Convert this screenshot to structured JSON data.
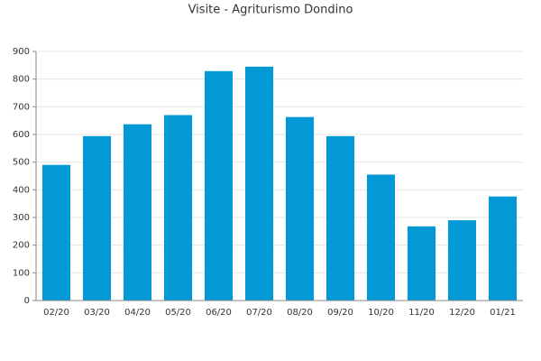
{
  "chart_data": {
    "type": "bar",
    "title": "Visite - Agriturismo Dondino",
    "categories": [
      "02/20",
      "03/20",
      "04/20",
      "05/20",
      "06/20",
      "07/20",
      "08/20",
      "09/20",
      "10/20",
      "11/20",
      "12/20",
      "01/21"
    ],
    "values": [
      490,
      594,
      637,
      670,
      829,
      845,
      663,
      594,
      455,
      268,
      290,
      376
    ],
    "color": "#0399d6",
    "ylim": [
      0,
      900
    ],
    "yticks": [
      0,
      100,
      200,
      300,
      400,
      500,
      600,
      700,
      800,
      900
    ],
    "grid": true
  }
}
